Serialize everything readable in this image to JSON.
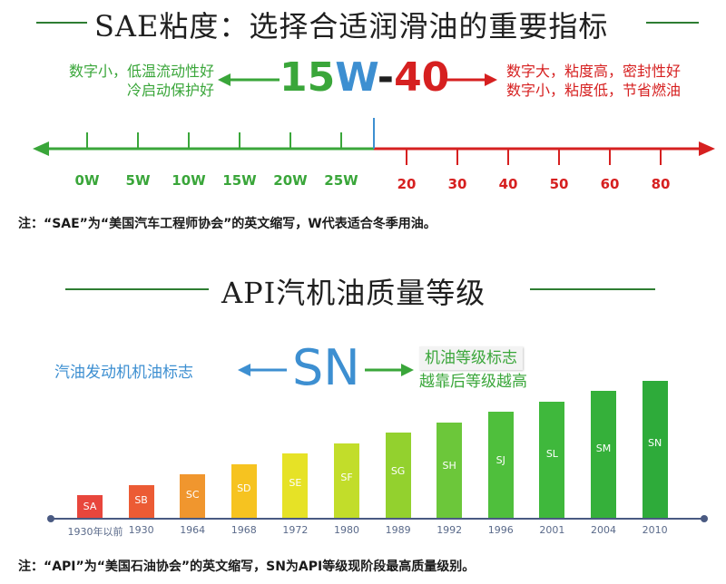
{
  "sae": {
    "title": "SAE粘度：选择合适润滑油的重要指标",
    "left_note": [
      "数字小，低温流动性好",
      "冷启动保护好"
    ],
    "right_note": [
      "数字大，粘度高，密封性好",
      "数字小，粘度低，节省燃油"
    ],
    "code_winter": "15W",
    "code_dash": "-",
    "code_summer": "40",
    "winter_ticks": [
      "0W",
      "5W",
      "10W",
      "15W",
      "20W",
      "25W"
    ],
    "summer_ticks": [
      "20",
      "30",
      "40",
      "50",
      "60",
      "80"
    ],
    "footnote": "注：“SAE”为“美国汽车工程师协会”的英文缩写，W代表适合冬季用油。"
  },
  "api": {
    "title": "API汽机油质量等级",
    "left_note": "汽油发动机机油标志",
    "code": "SN",
    "right_note": [
      "机油等级标志",
      "越靠后等级越高"
    ],
    "grades": [
      {
        "grade": "SA",
        "year": "1930年以前",
        "level": 1
      },
      {
        "grade": "SB",
        "year": "1930",
        "level": 2
      },
      {
        "grade": "SC",
        "year": "1964",
        "level": 3
      },
      {
        "grade": "SD",
        "year": "1968",
        "level": 4
      },
      {
        "grade": "SE",
        "year": "1972",
        "level": 5
      },
      {
        "grade": "SF",
        "year": "1980",
        "level": 6
      },
      {
        "grade": "SG",
        "year": "1989",
        "level": 7
      },
      {
        "grade": "SH",
        "year": "1992",
        "level": 8
      },
      {
        "grade": "SJ",
        "year": "1996",
        "level": 9
      },
      {
        "grade": "SL",
        "year": "2001",
        "level": 10
      },
      {
        "grade": "SM",
        "year": "2004",
        "level": 11
      },
      {
        "grade": "SN",
        "year": "2010",
        "level": 12
      }
    ],
    "footnote": "注：“API”为“美国石油协会”的英文缩写，SN为API等级现阶段最高质量级别。"
  },
  "colors": {
    "green": "#3aa63a",
    "red": "#d62020",
    "blue": "#3d8fd1",
    "grade_colors": [
      "#e8463c",
      "#ec5b34",
      "#f0962e",
      "#f6c320",
      "#e6e226",
      "#c2dd2a",
      "#93d12e",
      "#6cc73a",
      "#4fbf3c",
      "#3fb83c",
      "#35b03a",
      "#2eab3a"
    ]
  }
}
